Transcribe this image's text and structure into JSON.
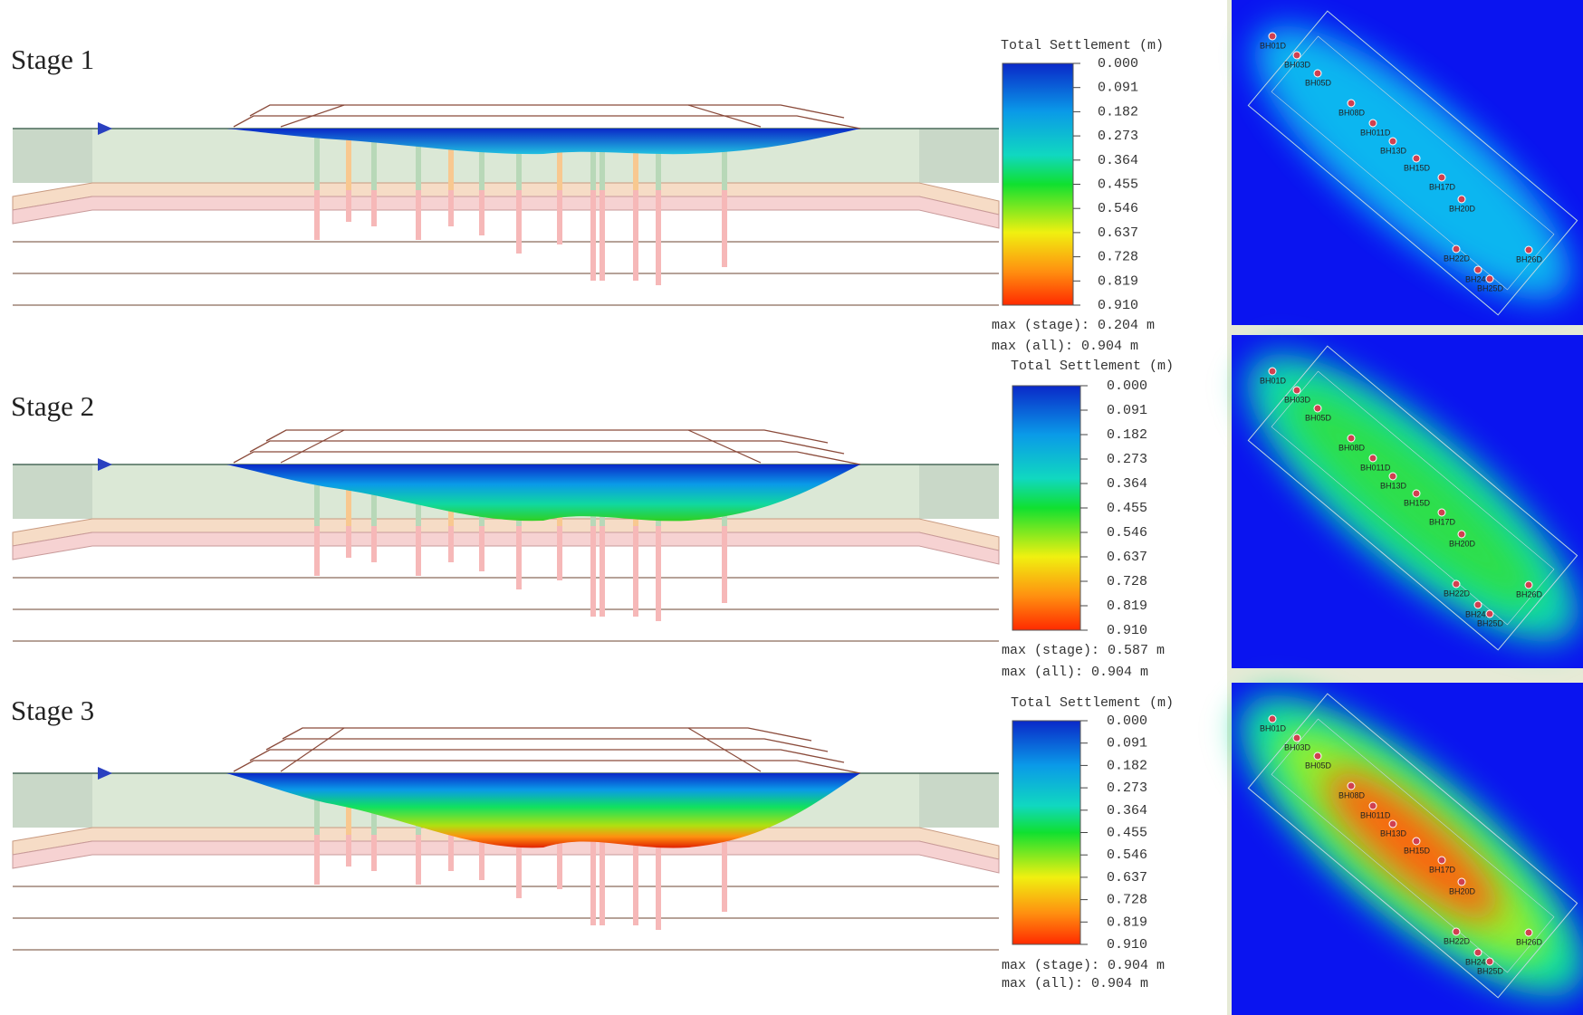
{
  "stages": [
    {
      "title": "Stage 1",
      "legend": {
        "title": "Total Settlement (m)",
        "ticks": [
          "0.000",
          "0.091",
          "0.182",
          "0.273",
          "0.364",
          "0.455",
          "0.546",
          "0.637",
          "0.728",
          "0.819",
          "0.910"
        ],
        "max_stage": "max (stage): 0.204 m",
        "max_all": "max (all):    0.904 m"
      }
    },
    {
      "title": "Stage 2",
      "legend": {
        "title": "Total Settlement (m)",
        "ticks": [
          "0.000",
          "0.091",
          "0.182",
          "0.273",
          "0.364",
          "0.455",
          "0.546",
          "0.637",
          "0.728",
          "0.819",
          "0.910"
        ],
        "max_stage": "max (stage): 0.587 m",
        "max_all": "max (all):    0.904 m"
      }
    },
    {
      "title": "Stage 3",
      "legend": {
        "title": "Total Settlement (m)",
        "ticks": [
          "0.000",
          "0.091",
          "0.182",
          "0.273",
          "0.364",
          "0.455",
          "0.546",
          "0.637",
          "0.728",
          "0.819",
          "0.910"
        ],
        "max_stage": "max (stage): 0.904 m",
        "max_all": "max (all):    0.904 m"
      }
    }
  ],
  "boreholes": [
    "BH01D",
    "BH03D",
    "BH05D",
    "BH08D",
    "BH011D",
    "BH13D",
    "BH15D",
    "BH17D",
    "BH20D",
    "BH22D",
    "BH24D",
    "BH25D",
    "BH26D"
  ]
}
